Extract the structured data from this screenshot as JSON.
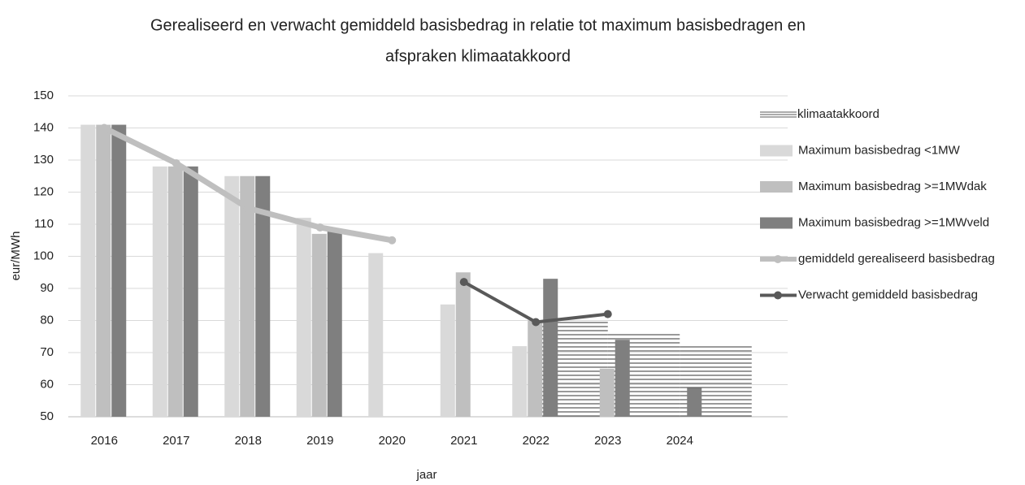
{
  "chart_data": {
    "type": "bar",
    "title": [
      "Gerealiseerd en verwacht gemiddeld  basisbedrag in relatie tot maximum basisbedragen  en",
      "afspraken klimaatakkoord"
    ],
    "x_label": "jaar",
    "y_label": "eur/MWh",
    "categories": [
      "2016",
      "2017",
      "2018",
      "2019",
      "2020",
      "2021",
      "2022",
      "2023",
      "2024",
      null
    ],
    "ylim": [
      50,
      150
    ],
    "yticks": [
      50,
      60,
      70,
      80,
      90,
      100,
      110,
      120,
      130,
      140,
      150
    ],
    "grid": true,
    "area": {
      "name": "klimaatakkoord",
      "color": "#595959",
      "values": [
        null,
        null,
        null,
        null,
        null,
        null,
        80,
        76,
        72,
        68
      ]
    },
    "series": [
      {
        "name": "Maximum basisbedrag <1MW",
        "type": "bar",
        "color": "#d9d9d9",
        "values": [
          141,
          128,
          125,
          112,
          101,
          85,
          72,
          null,
          null,
          null
        ]
      },
      {
        "name": "Maximum basisbedrag >=1MWdak",
        "type": "bar",
        "color": "#bfbfbf",
        "values": [
          141,
          128,
          125,
          107,
          null,
          95,
          80,
          65,
          null,
          null
        ]
      },
      {
        "name": "Maximum basisbedrag >=1MWveld",
        "type": "bar",
        "color": "#7f7f7f",
        "values": [
          141,
          128,
          125,
          108,
          null,
          null,
          93,
          74,
          59,
          null
        ]
      },
      {
        "name": "gemiddeld gerealiseerd basisbedrag",
        "type": "line",
        "color": "#bfbfbf",
        "values": [
          140,
          129,
          115,
          109,
          105,
          null,
          null,
          null,
          null,
          null
        ]
      },
      {
        "name": "Verwacht gemiddeld basisbedrag",
        "type": "line",
        "color": "#595959",
        "values": [
          null,
          null,
          null,
          null,
          null,
          92,
          79.5,
          82,
          null,
          null
        ]
      }
    ]
  }
}
